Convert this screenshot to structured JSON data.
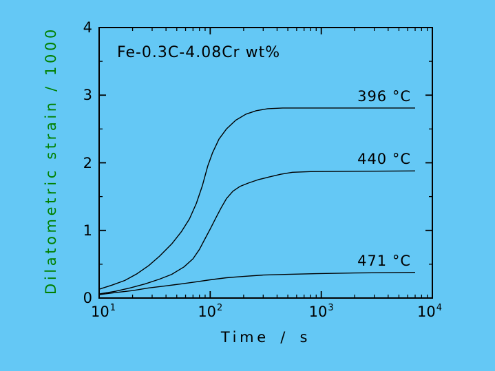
{
  "chart_data": {
    "type": "line",
    "title": "Fe-0.3C-4.08Cr wt%",
    "xlabel": "Time / s",
    "ylabel": "Dilatometric strain / 1000",
    "x_scale": "log",
    "x_range": [
      10,
      10000
    ],
    "y_range": [
      0,
      4
    ],
    "grid": false,
    "frame": true,
    "legend_position": "labels-right-aligned-above-plateaus",
    "colors": {
      "background": "#64C8F5",
      "axis": "#000000",
      "curve": "#000000",
      "ylabel_text": "#008000",
      "text": "#000000"
    },
    "x_major_ticks": [
      {
        "value": 10,
        "base": "10",
        "exp": "1"
      },
      {
        "value": 100,
        "base": "10",
        "exp": "2"
      },
      {
        "value": 1000,
        "base": "10",
        "exp": "3"
      },
      {
        "value": 10000,
        "base": "10",
        "exp": "4"
      }
    ],
    "y_major_ticks": [
      {
        "value": 0,
        "label": "0"
      },
      {
        "value": 1,
        "label": "1"
      },
      {
        "value": 2,
        "label": "2"
      },
      {
        "value": 3,
        "label": "3"
      },
      {
        "value": 4,
        "label": "4"
      }
    ],
    "y_minor_step": 0.5,
    "series": [
      {
        "name": "396 °C",
        "plateau": 2.81,
        "points": [
          [
            10,
            0.13
          ],
          [
            13,
            0.19
          ],
          [
            17,
            0.26
          ],
          [
            22,
            0.36
          ],
          [
            28,
            0.48
          ],
          [
            35,
            0.62
          ],
          [
            45,
            0.8
          ],
          [
            55,
            0.98
          ],
          [
            65,
            1.17
          ],
          [
            75,
            1.4
          ],
          [
            85,
            1.66
          ],
          [
            95,
            1.95
          ],
          [
            105,
            2.15
          ],
          [
            120,
            2.35
          ],
          [
            140,
            2.5
          ],
          [
            170,
            2.63
          ],
          [
            210,
            2.72
          ],
          [
            260,
            2.77
          ],
          [
            330,
            2.8
          ],
          [
            450,
            2.81
          ],
          [
            7000,
            2.81
          ]
        ]
      },
      {
        "name": "440 °C",
        "plateau": 1.88,
        "points": [
          [
            10,
            0.06
          ],
          [
            14,
            0.1
          ],
          [
            19,
            0.15
          ],
          [
            26,
            0.21
          ],
          [
            35,
            0.28
          ],
          [
            45,
            0.35
          ],
          [
            58,
            0.46
          ],
          [
            70,
            0.58
          ],
          [
            80,
            0.72
          ],
          [
            90,
            0.88
          ],
          [
            100,
            1.02
          ],
          [
            112,
            1.18
          ],
          [
            125,
            1.33
          ],
          [
            140,
            1.47
          ],
          [
            160,
            1.58
          ],
          [
            185,
            1.65
          ],
          [
            220,
            1.7
          ],
          [
            270,
            1.75
          ],
          [
            340,
            1.79
          ],
          [
            430,
            1.83
          ],
          [
            550,
            1.86
          ],
          [
            800,
            1.87
          ],
          [
            7000,
            1.88
          ]
        ]
      },
      {
        "name": "471 °C",
        "plateau": 0.38,
        "points": [
          [
            10,
            0.05
          ],
          [
            14,
            0.08
          ],
          [
            20,
            0.11
          ],
          [
            28,
            0.15
          ],
          [
            40,
            0.18
          ],
          [
            55,
            0.21
          ],
          [
            75,
            0.24
          ],
          [
            100,
            0.27
          ],
          [
            140,
            0.3
          ],
          [
            200,
            0.32
          ],
          [
            300,
            0.34
          ],
          [
            500,
            0.35
          ],
          [
            900,
            0.36
          ],
          [
            2000,
            0.37
          ],
          [
            7000,
            0.38
          ]
        ]
      }
    ]
  }
}
